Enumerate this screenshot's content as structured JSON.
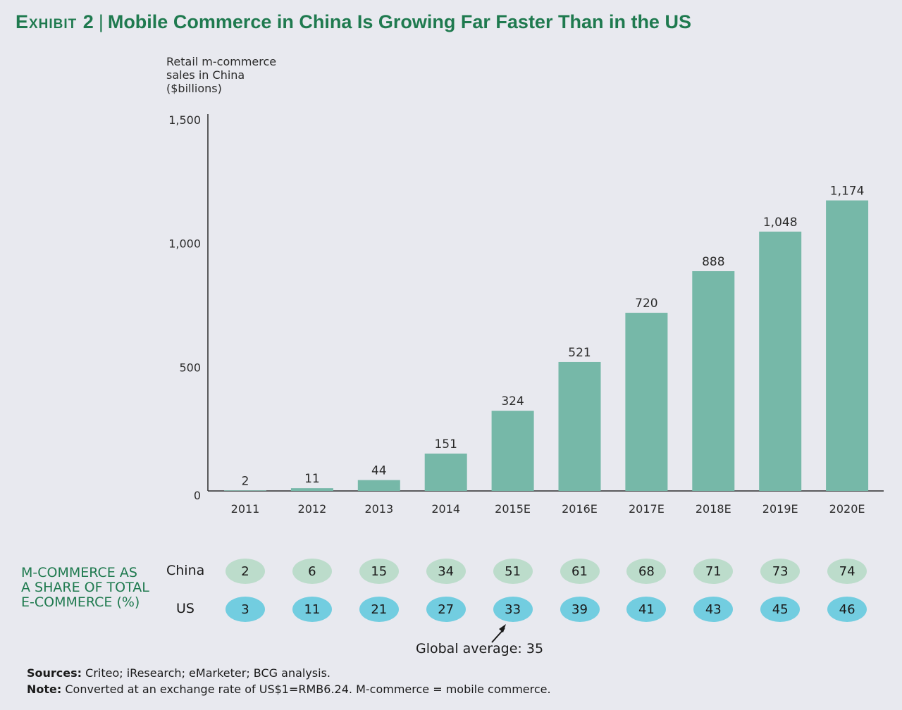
{
  "title": {
    "exhibit": "Exhibit 2",
    "separator": "|",
    "text": "Mobile Commerce in China Is Growing Far Faster Than in the US"
  },
  "chart_data": {
    "type": "bar",
    "ylabel": "Retail m-commerce\nsales in China\n($billions)",
    "ylim": [
      0,
      1500
    ],
    "yticks": [
      "0",
      "500",
      "1,000",
      "1,500"
    ],
    "ytick_values": [
      0,
      500,
      1000,
      1500
    ],
    "categories": [
      "2011",
      "2012",
      "2013",
      "2014",
      "2015E",
      "2016E",
      "2017E",
      "2018E",
      "2019E",
      "2020E"
    ],
    "values": [
      2,
      11,
      44,
      151,
      324,
      521,
      720,
      888,
      1048,
      1174
    ],
    "value_labels": [
      "2",
      "11",
      "44",
      "151",
      "324",
      "521",
      "720",
      "888",
      "1,048",
      "1,174"
    ],
    "bar_color": "#76b8a8",
    "grid": false
  },
  "share_table": {
    "label": "M-COMMERCE AS\nA SHARE OF TOTAL\nE-COMMERCE (%)",
    "rows": [
      {
        "name": "China",
        "values": [
          "2",
          "6",
          "15",
          "34",
          "51",
          "61",
          "68",
          "71",
          "73",
          "74"
        ],
        "color": "#bcdccb"
      },
      {
        "name": "US",
        "values": [
          "3",
          "11",
          "21",
          "27",
          "33",
          "39",
          "41",
          "43",
          "45",
          "46"
        ],
        "color": "#72cde0"
      }
    ],
    "global_note": "Global average: 35"
  },
  "footer": {
    "sources_label": "Sources:",
    "sources_text": "Criteo; iResearch; eMarketer; BCG analysis.",
    "note_label": "Note:",
    "note_text": "Converted at an exchange rate of US$1=RMB6.24. M-commerce = mobile commerce."
  },
  "colors": {
    "background": "#e8e9ef",
    "title": "#1f7a4f",
    "bar": "#76b8a8",
    "china_pill": "#bcdccb",
    "us_pill": "#72cde0"
  }
}
